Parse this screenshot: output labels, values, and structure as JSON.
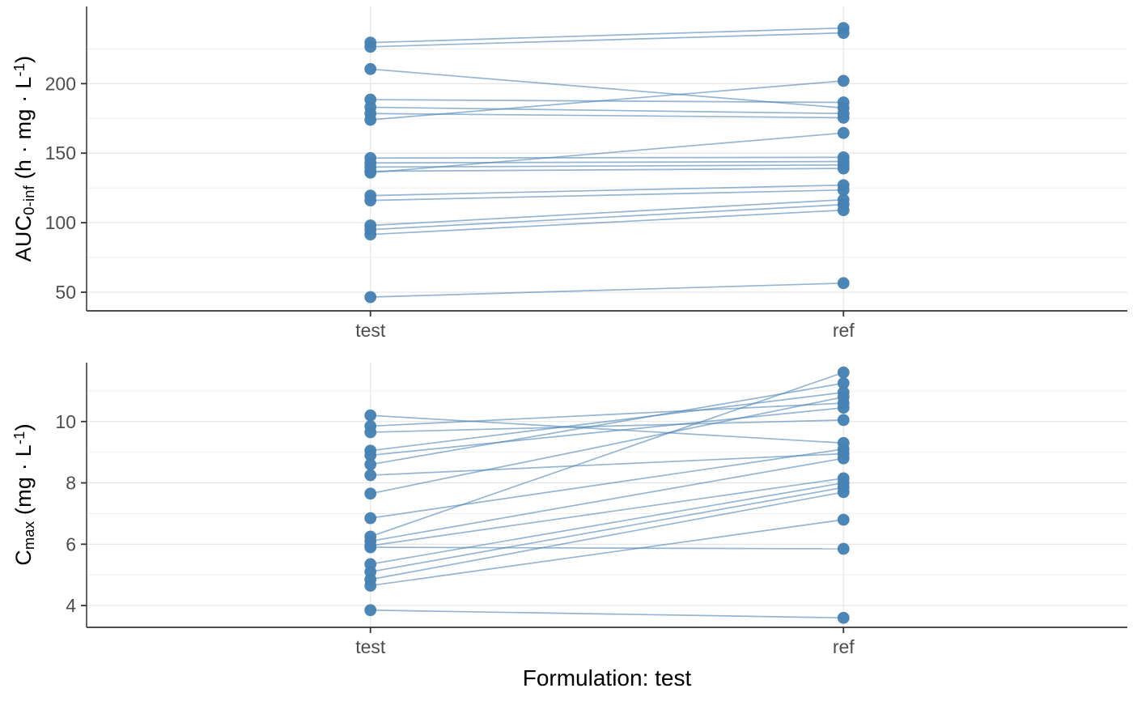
{
  "caption": "Formulation: test",
  "categories": [
    "test",
    "ref"
  ],
  "colors": {
    "point": "#4682B4",
    "line": "#4682B4",
    "grid_major": "#e3e3e3",
    "grid_minor": "#ededed",
    "axis_line": "#333333",
    "tick_mark": "#333333",
    "tick_label": "#4d4d4d",
    "axis_title": "#000000"
  },
  "chart_data": [
    {
      "type": "scatter",
      "name": "auc-panel",
      "ylabel": {
        "base": "AUC",
        "sub": "0-inf",
        "units_pre": " (h · mg · L",
        "sup": "-1",
        "units_post": ")"
      },
      "categories": [
        "test",
        "ref"
      ],
      "yticks": [
        50,
        100,
        150,
        200
      ],
      "minor_ticks": [
        75,
        125,
        175,
        225
      ],
      "ylim": [
        36.6,
        255.5
      ],
      "legend": "none",
      "grid": "on",
      "pairs_test_to_ref": [
        [
          229.5,
          240
        ],
        [
          226.5,
          236.5
        ],
        [
          210.5,
          182.5
        ],
        [
          188.5,
          186.5
        ],
        [
          183,
          178.5
        ],
        [
          178.5,
          175.5
        ],
        [
          174,
          202
        ],
        [
          146.5,
          147
        ],
        [
          143,
          144
        ],
        [
          140,
          141.5
        ],
        [
          137,
          139
        ],
        [
          136,
          164.5
        ],
        [
          119.5,
          127
        ],
        [
          116,
          123.5
        ],
        [
          98,
          116.5
        ],
        [
          95,
          113
        ],
        [
          91.5,
          109
        ],
        [
          46.5,
          56.5
        ]
      ]
    },
    {
      "type": "scatter",
      "name": "cmax-panel",
      "ylabel": {
        "base": "C",
        "sub": "max",
        "units_pre": " (mg · L",
        "sup": "-1",
        "units_post": ")"
      },
      "categories": [
        "test",
        "ref"
      ],
      "yticks": [
        4,
        6,
        8,
        10
      ],
      "minor_ticks": [
        5,
        7,
        9,
        11
      ],
      "ylim": [
        3.29,
        11.92
      ],
      "legend": "none",
      "grid": "on",
      "pairs_test_to_ref": [
        [
          10.2,
          9.3
        ],
        [
          9.85,
          10.6
        ],
        [
          9.65,
          10.05
        ],
        [
          9.05,
          10.95
        ],
        [
          8.9,
          10.45
        ],
        [
          8.6,
          11.25
        ],
        [
          8.25,
          8.95
        ],
        [
          7.65,
          10.8
        ],
        [
          6.85,
          9.1
        ],
        [
          6.25,
          11.6
        ],
        [
          6.1,
          8.8
        ],
        [
          5.95,
          8.15
        ],
        [
          5.9,
          5.85
        ],
        [
          5.35,
          8.0
        ],
        [
          5.1,
          7.85
        ],
        [
          4.85,
          7.7
        ],
        [
          4.65,
          6.8
        ],
        [
          3.85,
          3.6
        ]
      ]
    }
  ]
}
